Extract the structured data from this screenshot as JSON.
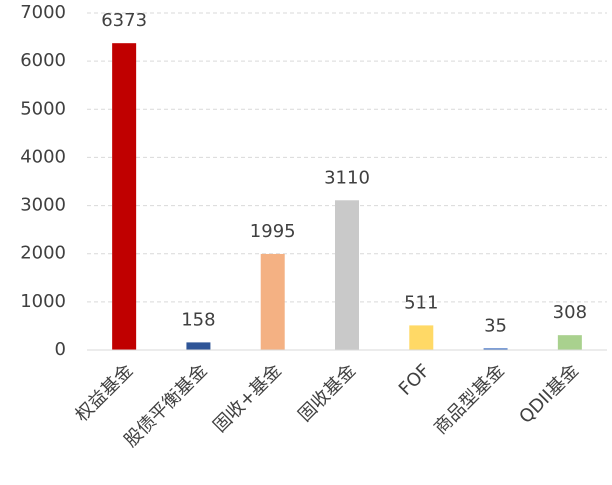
{
  "chart_data": {
    "type": "bar",
    "categories": [
      "权益基金",
      "股债平衡基金",
      "固收+基金",
      "固收基金",
      "FOF",
      "商品型基金",
      "QDII基金"
    ],
    "values": [
      6373,
      158,
      1995,
      3110,
      511,
      35,
      308
    ],
    "colors": [
      "#c00000",
      "#2f5597",
      "#f4b183",
      "#c9c9c9",
      "#ffd966",
      "#4472c4",
      "#a9d18e"
    ],
    "ylim": [
      0,
      7000
    ],
    "yticks": [
      0,
      1000,
      2000,
      3000,
      4000,
      5000,
      6000,
      7000
    ],
    "grid": true
  }
}
